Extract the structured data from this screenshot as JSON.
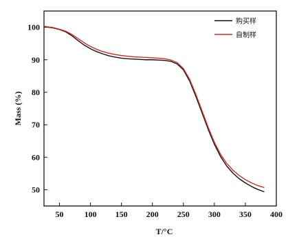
{
  "chart_data": {
    "type": "line",
    "title": "",
    "xlabel": "T/°C",
    "ylabel": "Mass (%)",
    "xlim": [
      25,
      400
    ],
    "ylim": [
      45,
      105
    ],
    "xticks": [
      50,
      100,
      150,
      200,
      250,
      300,
      350,
      400
    ],
    "yticks": [
      50,
      60,
      70,
      80,
      90,
      100
    ],
    "grid": false,
    "legend_position": "top-right",
    "series": [
      {
        "name": "购买样",
        "color": "#111111",
        "x": [
          25,
          40,
          50,
          60,
          70,
          80,
          90,
          100,
          110,
          120,
          130,
          140,
          150,
          160,
          170,
          180,
          190,
          200,
          210,
          220,
          230,
          240,
          250,
          260,
          270,
          280,
          290,
          300,
          310,
          320,
          330,
          340,
          350,
          360,
          370,
          380
        ],
        "y": [
          100.2,
          99.8,
          99.3,
          98.6,
          97.4,
          95.9,
          94.5,
          93.4,
          92.5,
          91.8,
          91.2,
          90.8,
          90.5,
          90.3,
          90.2,
          90.1,
          90.0,
          90.0,
          89.9,
          89.8,
          89.5,
          88.7,
          86.9,
          83.5,
          78.8,
          73.7,
          68.6,
          64.0,
          60.2,
          57.3,
          55.1,
          53.4,
          52.1,
          51.0,
          50.1,
          49.4
        ]
      },
      {
        "name": "自制样",
        "color": "#d62728",
        "x": [
          25,
          40,
          50,
          60,
          70,
          80,
          90,
          100,
          110,
          120,
          130,
          140,
          150,
          160,
          170,
          180,
          190,
          200,
          210,
          220,
          230,
          240,
          250,
          260,
          270,
          280,
          290,
          300,
          310,
          320,
          330,
          340,
          350,
          360,
          370,
          380
        ],
        "y": [
          100.3,
          99.9,
          99.4,
          98.8,
          97.8,
          96.5,
          95.2,
          94.1,
          93.2,
          92.5,
          92.0,
          91.6,
          91.3,
          91.1,
          90.9,
          90.8,
          90.7,
          90.6,
          90.5,
          90.3,
          89.9,
          89.1,
          87.3,
          84.0,
          79.4,
          74.3,
          69.2,
          64.6,
          60.9,
          58.1,
          56.0,
          54.4,
          53.1,
          52.1,
          51.3,
          50.7
        ]
      }
    ]
  }
}
